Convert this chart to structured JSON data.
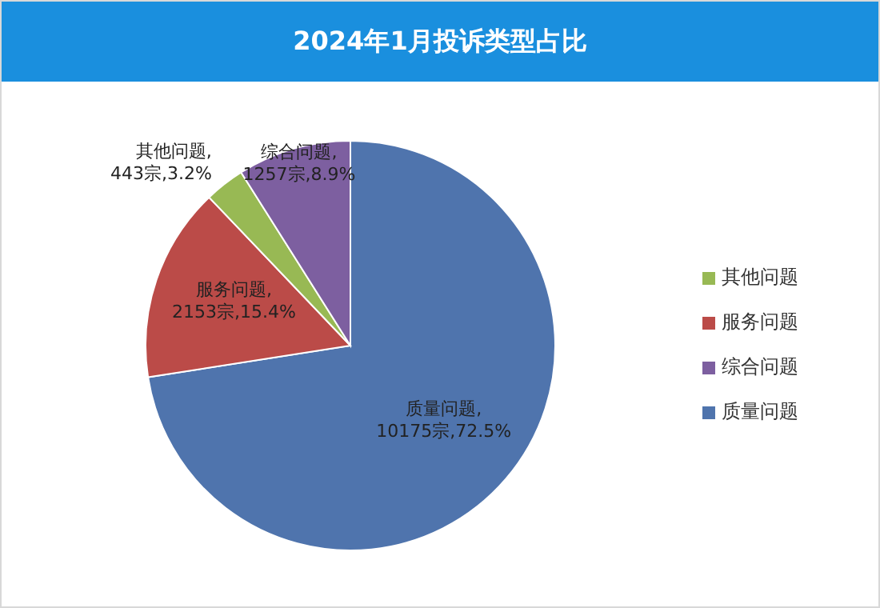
{
  "chart_data": {
    "type": "pie",
    "title": "2024年1月投诉类型占比",
    "categories": [
      "质量问题",
      "服务问题",
      "其他问题",
      "综合问题"
    ],
    "values": [
      10175,
      2153,
      443,
      1257
    ],
    "colors": [
      "#4f74ad",
      "#bb4b48",
      "#98b954",
      "#7d5fa0"
    ],
    "value_labels": [
      "质量问题,\n10175宗,72.5%",
      "服务问题,\n2153宗,15.4%",
      "其他问题,\n443宗,3.2%",
      "综合问题,\n1257宗,8.9%"
    ],
    "legend": "right"
  }
}
